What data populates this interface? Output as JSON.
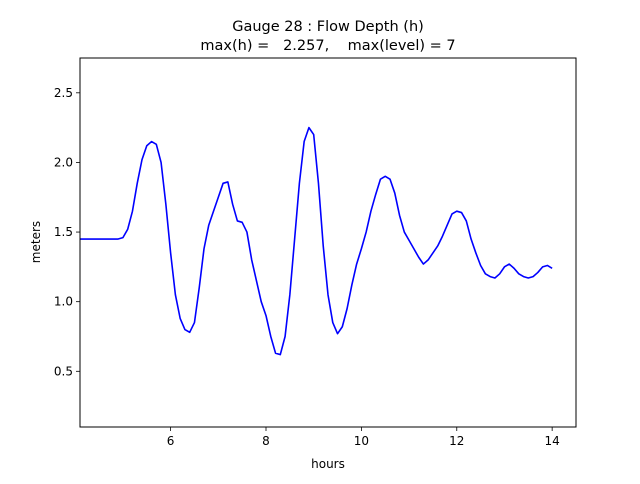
{
  "chart_data": {
    "type": "line",
    "title_line1": "Gauge 28 : Flow Depth (h)",
    "title_line2": "max(h) =   2.257,    max(level) = 7",
    "xlabel": "hours",
    "ylabel": "meters",
    "xlim": [
      4.1,
      14.5
    ],
    "ylim": [
      0.1,
      2.75
    ],
    "xticks": [
      {
        "value": 6,
        "label": "6"
      },
      {
        "value": 8,
        "label": "8"
      },
      {
        "value": 10,
        "label": "10"
      },
      {
        "value": 12,
        "label": "12"
      },
      {
        "value": 14,
        "label": "14"
      }
    ],
    "yticks": [
      {
        "value": 0.5,
        "label": "0.5"
      },
      {
        "value": 1.0,
        "label": "1.0"
      },
      {
        "value": 1.5,
        "label": "1.5"
      },
      {
        "value": 2.0,
        "label": "2.0"
      },
      {
        "value": 2.5,
        "label": "2.5"
      }
    ],
    "grid": false,
    "series": [
      {
        "color": "#0000ff",
        "x": [
          4.1,
          4.3,
          4.5,
          4.7,
          4.9,
          5.0,
          5.1,
          5.2,
          5.3,
          5.4,
          5.5,
          5.6,
          5.7,
          5.8,
          5.9,
          6.0,
          6.1,
          6.2,
          6.3,
          6.4,
          6.5,
          6.6,
          6.7,
          6.8,
          6.9,
          7.0,
          7.1,
          7.2,
          7.3,
          7.4,
          7.5,
          7.6,
          7.7,
          7.8,
          7.9,
          8.0,
          8.1,
          8.2,
          8.3,
          8.4,
          8.5,
          8.6,
          8.7,
          8.8,
          8.9,
          9.0,
          9.1,
          9.2,
          9.3,
          9.4,
          9.5,
          9.6,
          9.7,
          9.8,
          9.9,
          10.0,
          10.1,
          10.2,
          10.3,
          10.4,
          10.5,
          10.6,
          10.7,
          10.8,
          10.9,
          11.0,
          11.1,
          11.2,
          11.3,
          11.4,
          11.5,
          11.6,
          11.7,
          11.8,
          11.9,
          12.0,
          12.1,
          12.2,
          12.3,
          12.4,
          12.5,
          12.6,
          12.7,
          12.8,
          12.9,
          13.0,
          13.1,
          13.2,
          13.3,
          13.4,
          13.5,
          13.6,
          13.7,
          13.8,
          13.9,
          14.0
        ],
        "y": [
          1.45,
          1.45,
          1.45,
          1.45,
          1.45,
          1.46,
          1.52,
          1.65,
          1.85,
          2.02,
          2.12,
          2.15,
          2.13,
          2.0,
          1.7,
          1.35,
          1.05,
          0.88,
          0.8,
          0.78,
          0.85,
          1.1,
          1.38,
          1.55,
          1.65,
          1.75,
          1.85,
          1.86,
          1.7,
          1.58,
          1.57,
          1.5,
          1.3,
          1.15,
          1.0,
          0.9,
          0.75,
          0.63,
          0.62,
          0.75,
          1.05,
          1.45,
          1.85,
          2.15,
          2.25,
          2.2,
          1.85,
          1.4,
          1.05,
          0.85,
          0.77,
          0.82,
          0.95,
          1.12,
          1.27,
          1.38,
          1.5,
          1.65,
          1.77,
          1.88,
          1.9,
          1.88,
          1.78,
          1.62,
          1.5,
          1.44,
          1.38,
          1.32,
          1.27,
          1.3,
          1.35,
          1.4,
          1.47,
          1.55,
          1.63,
          1.65,
          1.64,
          1.58,
          1.45,
          1.35,
          1.26,
          1.2,
          1.18,
          1.17,
          1.2,
          1.25,
          1.27,
          1.24,
          1.2,
          1.18,
          1.17,
          1.18,
          1.21,
          1.25,
          1.26,
          1.24
        ]
      }
    ]
  }
}
